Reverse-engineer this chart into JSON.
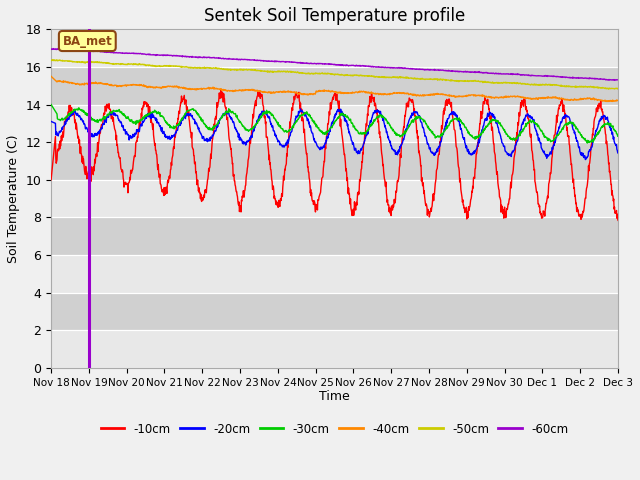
{
  "title": "Sentek Soil Temperature profile",
  "xlabel": "Time",
  "ylabel": "Soil Temperature (C)",
  "ylim": [
    0,
    18
  ],
  "yticks": [
    0,
    2,
    4,
    6,
    8,
    10,
    12,
    14,
    16,
    18
  ],
  "fig_bg": "#f0f0f0",
  "plot_bg": "#d8d8d8",
  "stripe_light": "#e8e8e8",
  "stripe_dark": "#d0d0d0",
  "legend_label": "BA_met",
  "legend_bg": "#ffff99",
  "legend_border": "#8b4513",
  "line_colors": {
    "-10cm": "#ff0000",
    "-20cm": "#0000ff",
    "-30cm": "#00cc00",
    "-40cm": "#ff8800",
    "-50cm": "#cccc00",
    "-60cm": "#9900cc"
  },
  "vline_color": "#9900cc",
  "xtick_labels": [
    "Nov 18",
    "Nov 19",
    "Nov 20",
    "Nov 21",
    "Nov 22",
    "Nov 23",
    "Nov 24",
    "Nov 25",
    "Nov 26",
    "Nov 27",
    "Nov 28",
    "Nov 29",
    "Nov 30",
    "Dec 1",
    "Dec 2",
    "Dec 3"
  ],
  "num_days": 15,
  "points_per_day": 96
}
